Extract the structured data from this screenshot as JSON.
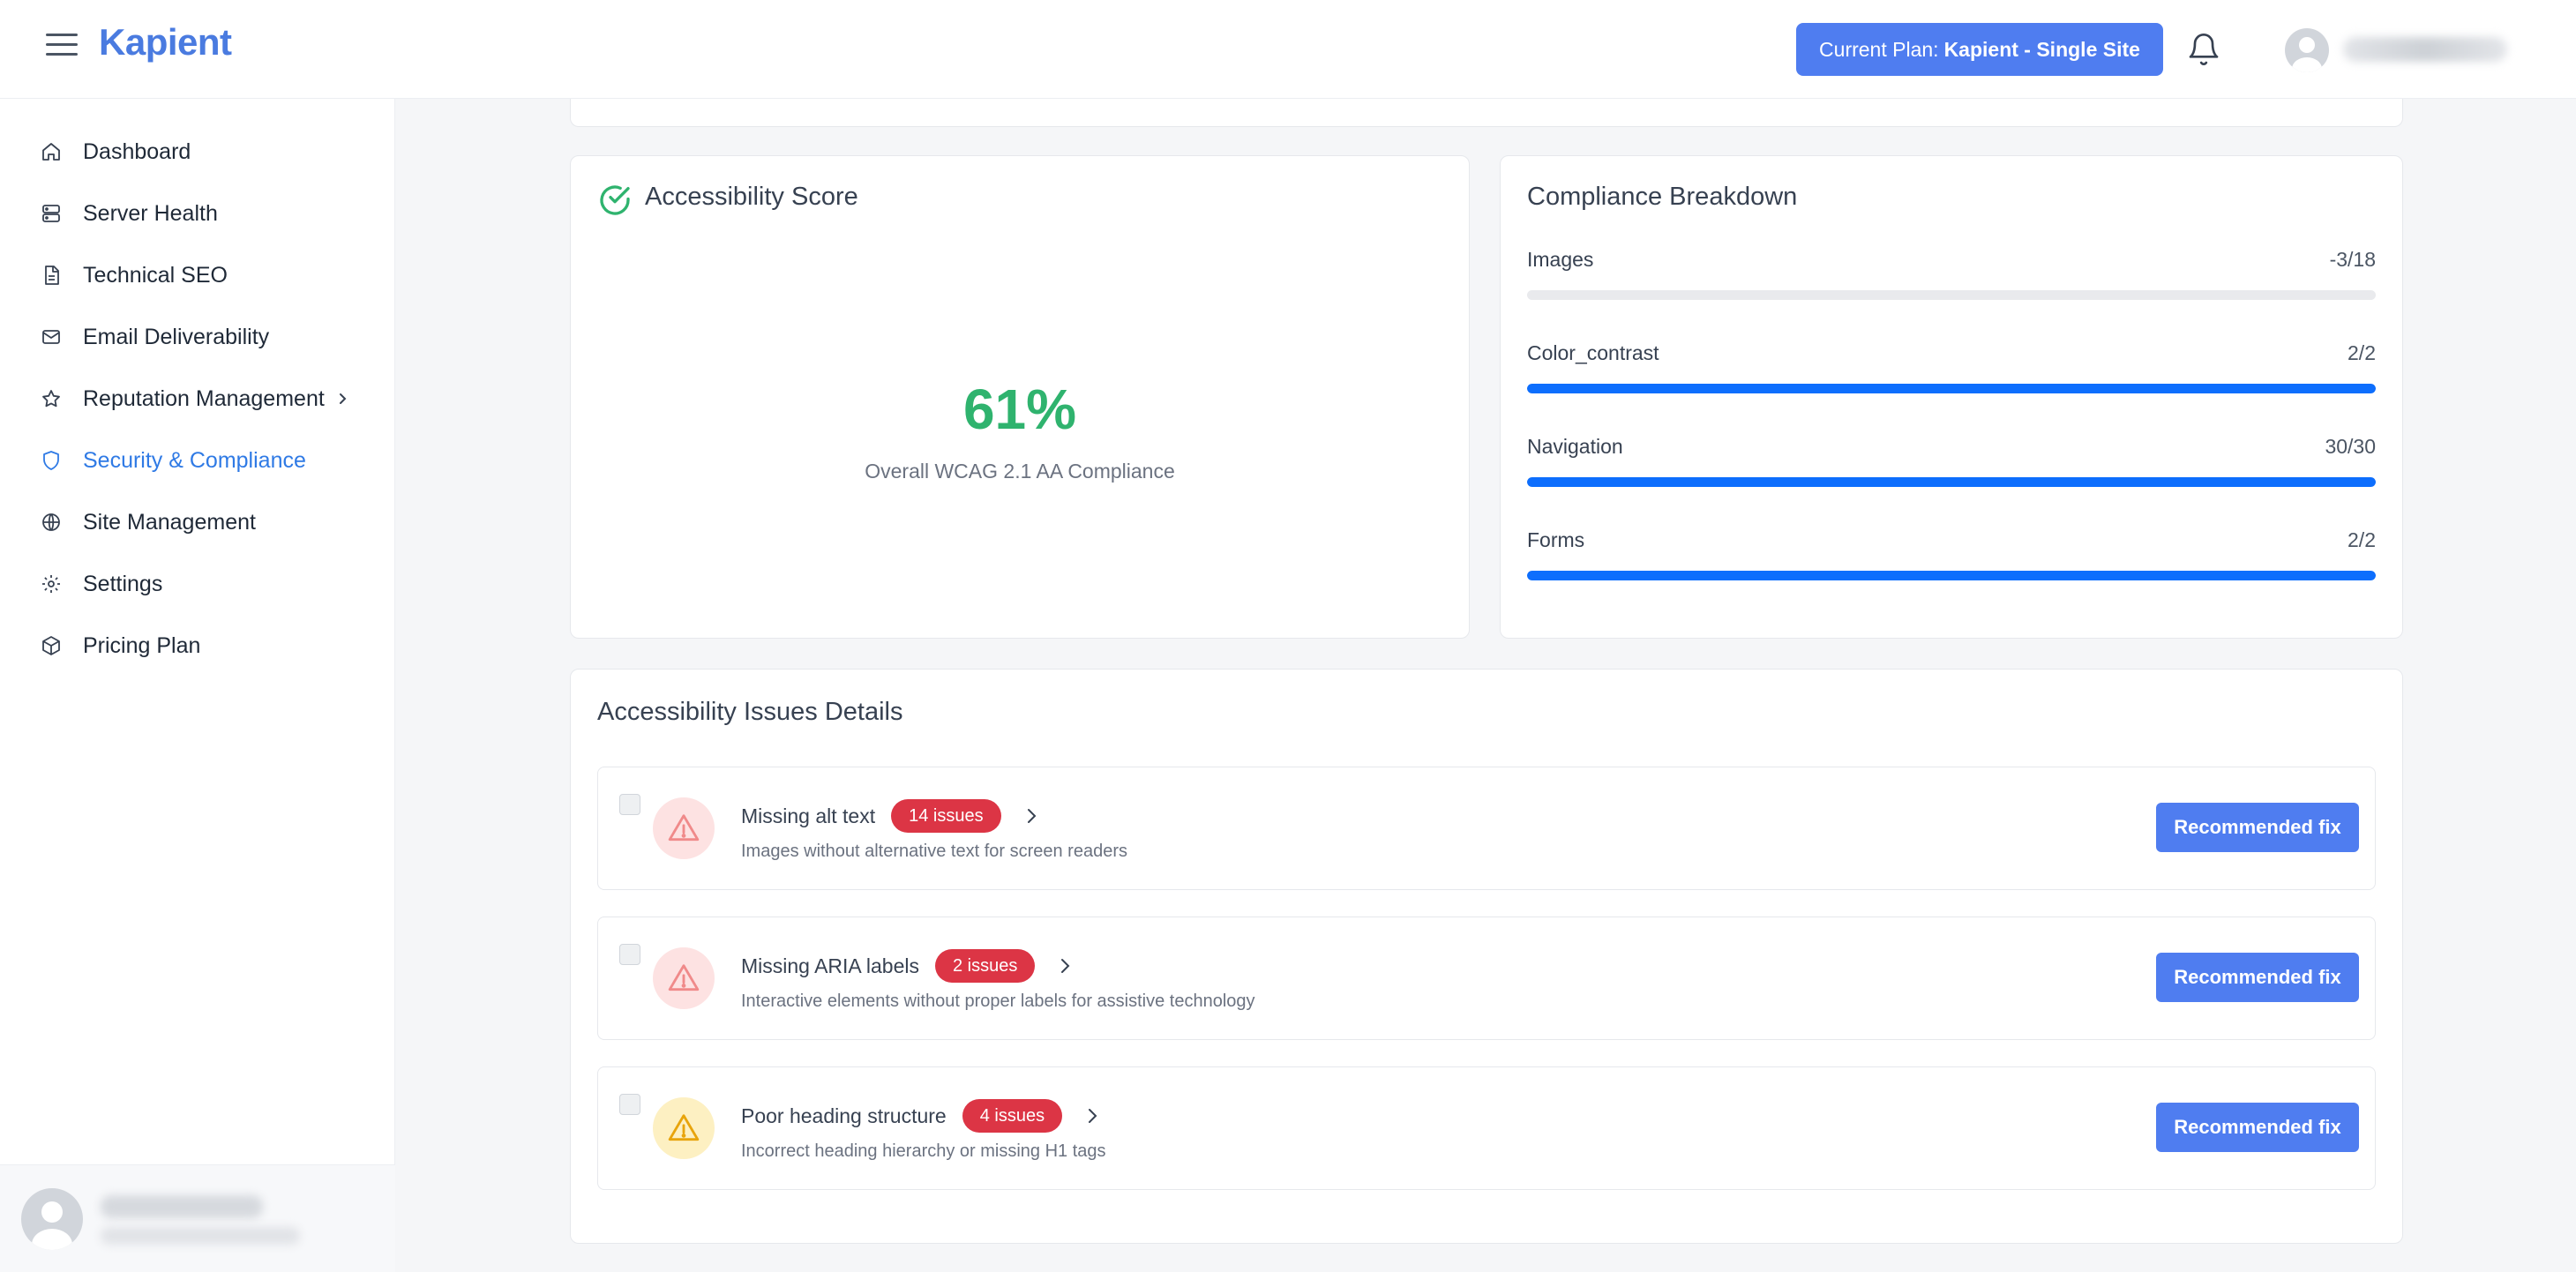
{
  "header": {
    "brand": "Kapient",
    "plan_label": "Current Plan:",
    "plan_name": "Kapient - Single Site"
  },
  "sidebar": {
    "items": [
      {
        "label": "Dashboard",
        "icon": "home-icon"
      },
      {
        "label": "Server Health",
        "icon": "server-icon"
      },
      {
        "label": "Technical SEO",
        "icon": "document-icon"
      },
      {
        "label": "Email Deliverability",
        "icon": "mail-icon"
      },
      {
        "label": "Reputation Management",
        "icon": "star-icon"
      },
      {
        "label": "Security & Compliance",
        "icon": "shield-icon"
      },
      {
        "label": "Site Management",
        "icon": "globe-icon"
      },
      {
        "label": "Settings",
        "icon": "gear-icon"
      },
      {
        "label": "Pricing Plan",
        "icon": "box-icon"
      }
    ],
    "active_item": "Security & Compliance"
  },
  "score_card": {
    "title": "Accessibility Score",
    "value": "61%",
    "subtitle": "Overall WCAG 2.1 AA Compliance",
    "color": "#2fb36e"
  },
  "breakdown": {
    "title": "Compliance Breakdown",
    "rows": [
      {
        "name": "Images",
        "value": "-3/18",
        "fraction": 0
      },
      {
        "name": "Color_contrast",
        "value": "2/2",
        "fraction": 1
      },
      {
        "name": "Navigation",
        "value": "30/30",
        "fraction": 1
      },
      {
        "name": "Forms",
        "value": "2/2",
        "fraction": 1
      }
    ],
    "bar_color": "#0d6efd"
  },
  "issues": {
    "title": "Accessibility Issues Details",
    "fix_label": "Recommended fix",
    "items": [
      {
        "name": "Missing alt text",
        "badge": "14 issues",
        "description": "Images without alternative text for screen readers",
        "severity": "red"
      },
      {
        "name": "Missing ARIA labels",
        "badge": "2 issues",
        "description": "Interactive elements without proper labels for assistive technology",
        "severity": "red"
      },
      {
        "name": "Poor heading structure",
        "badge": "4 issues",
        "description": "Incorrect heading hierarchy or missing H1 tags",
        "severity": "yellow"
      }
    ]
  }
}
